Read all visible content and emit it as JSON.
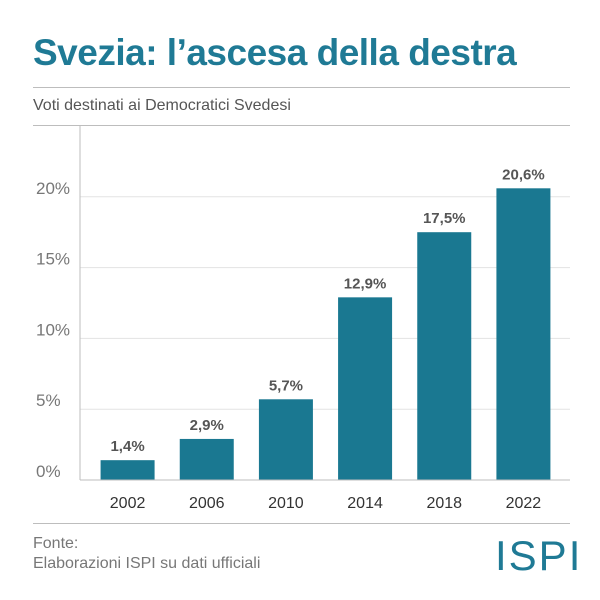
{
  "header": {
    "title": "Svezia: l’ascesa della destra",
    "subtitle": "Voti destinati ai Democratici Svedesi"
  },
  "footer": {
    "source_label": "Fonte:",
    "source_text": "Elaborazioni ISPI su dati ufficiali",
    "logo_text": "ISPI"
  },
  "colors": {
    "accent": "#1f7a95",
    "bar": "#1a7891"
  },
  "chart_data": {
    "type": "bar",
    "title": "Svezia: l’ascesa della destra",
    "subtitle": "Voti destinati ai Democratici Svedesi",
    "xlabel": "",
    "ylabel": "",
    "categories": [
      "2002",
      "2006",
      "2010",
      "2014",
      "2018",
      "2022"
    ],
    "values": [
      1.4,
      2.9,
      5.7,
      12.9,
      17.5,
      20.6
    ],
    "data_labels": [
      "1,4%",
      "2,9%",
      "5,7%",
      "12,9%",
      "17,5%",
      "20,6%"
    ],
    "yticks": [
      0,
      5,
      10,
      15,
      20
    ],
    "ytick_labels": [
      "0%",
      "5%",
      "10%",
      "15%",
      "20%"
    ],
    "ylim": [
      0,
      25
    ],
    "grid": true
  }
}
